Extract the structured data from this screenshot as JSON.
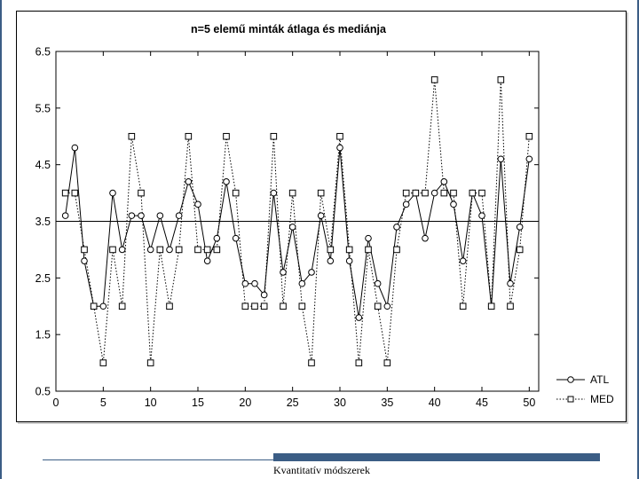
{
  "colors": {
    "accent": "#3b5d85",
    "frame": "#000000",
    "plot_line": "#000000",
    "sidebar": "#3b5d85"
  },
  "footer": {
    "text": "Kvantitatív módszerek"
  },
  "chart_data": {
    "type": "line",
    "title": "n=5 elemű minták átlaga és mediánja",
    "xlabel": "",
    "ylabel": "",
    "xlim": [
      0,
      51
    ],
    "ylim": [
      0.5,
      6.5
    ],
    "xticks": [
      0,
      5,
      10,
      15,
      20,
      25,
      30,
      35,
      40,
      45,
      50
    ],
    "yticks": [
      0.5,
      1.5,
      2.5,
      3.5,
      4.5,
      5.5,
      6.5
    ],
    "ytick_labels": [
      "0.5",
      "1.5",
      "2.5",
      "3.5",
      "4.5",
      "5.5",
      "6.5"
    ],
    "reference_line": 3.5,
    "grid": false,
    "legend_position": "bottom-right",
    "x": [
      1,
      2,
      3,
      4,
      5,
      6,
      7,
      8,
      9,
      10,
      11,
      12,
      13,
      14,
      15,
      16,
      17,
      18,
      19,
      20,
      21,
      22,
      23,
      24,
      25,
      26,
      27,
      28,
      29,
      30,
      31,
      32,
      33,
      34,
      35,
      36,
      37,
      38,
      39,
      40,
      41,
      42,
      43,
      44,
      45,
      46,
      47,
      48,
      49,
      50
    ],
    "series": [
      {
        "name": "ATL",
        "marker": "circle",
        "line": "solid",
        "values": [
          3.6,
          4.8,
          2.8,
          2.0,
          2.0,
          4.0,
          3.0,
          3.6,
          3.6,
          3.0,
          3.6,
          3.0,
          3.6,
          4.2,
          3.8,
          2.8,
          3.2,
          4.2,
          3.2,
          2.4,
          2.4,
          2.2,
          4.0,
          2.6,
          3.4,
          2.4,
          2.6,
          3.6,
          2.8,
          4.8,
          2.8,
          1.8,
          3.2,
          2.4,
          2.0,
          3.4,
          3.8,
          4.0,
          3.2,
          4.0,
          4.2,
          3.8,
          2.8,
          4.0,
          3.6,
          2.0,
          4.6,
          2.4,
          3.4,
          4.6
        ]
      },
      {
        "name": "MED",
        "marker": "square",
        "line": "dotted",
        "values": [
          4.0,
          4.0,
          3.0,
          2.0,
          1.0,
          3.0,
          2.0,
          5.0,
          4.0,
          1.0,
          3.0,
          2.0,
          3.0,
          5.0,
          3.0,
          3.0,
          3.0,
          5.0,
          4.0,
          2.0,
          2.0,
          2.0,
          5.0,
          2.0,
          4.0,
          2.0,
          1.0,
          4.0,
          3.0,
          5.0,
          3.0,
          1.0,
          3.0,
          2.0,
          1.0,
          3.0,
          4.0,
          4.0,
          4.0,
          6.0,
          4.0,
          4.0,
          2.0,
          4.0,
          4.0,
          2.0,
          6.0,
          2.0,
          3.0,
          5.0
        ]
      }
    ]
  }
}
